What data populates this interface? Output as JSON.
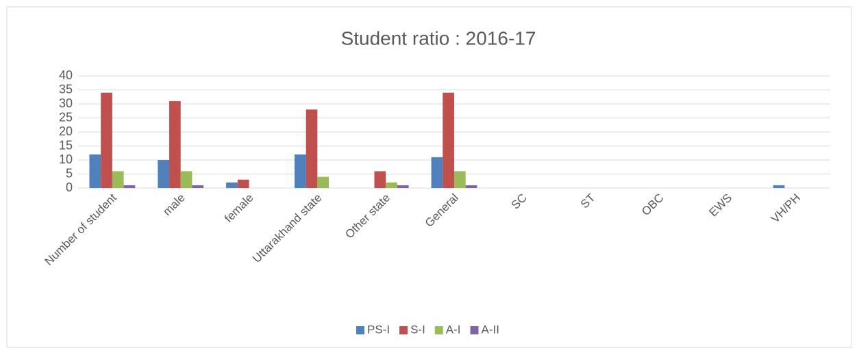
{
  "chart_data": {
    "type": "bar",
    "title": "Student ratio : 2016-17",
    "categories": [
      "Number of student",
      "male",
      "female",
      "Uttarakhand state",
      "Other state",
      "General",
      "SC",
      "ST",
      "OBC",
      "EWS",
      "VH/PH"
    ],
    "series": [
      {
        "name": "PS-I",
        "color": "#4f81bd",
        "values": [
          12,
          10,
          2,
          12,
          0,
          11,
          0,
          0,
          0,
          0,
          1
        ]
      },
      {
        "name": "S-I",
        "color": "#c0504d",
        "values": [
          34,
          31,
          3,
          28,
          6,
          34,
          0,
          0,
          0,
          0,
          0
        ]
      },
      {
        "name": "A-I",
        "color": "#9bbb59",
        "values": [
          6,
          6,
          0,
          4,
          2,
          6,
          0,
          0,
          0,
          0,
          0
        ]
      },
      {
        "name": "A-II",
        "color": "#8064a2",
        "values": [
          1,
          1,
          0,
          0,
          1,
          1,
          0,
          0,
          0,
          0,
          0
        ]
      }
    ],
    "ylim": [
      0,
      40
    ],
    "yticks": [
      0,
      5,
      10,
      15,
      20,
      25,
      30,
      35,
      40
    ],
    "grid": true,
    "legend": "bottom"
  }
}
